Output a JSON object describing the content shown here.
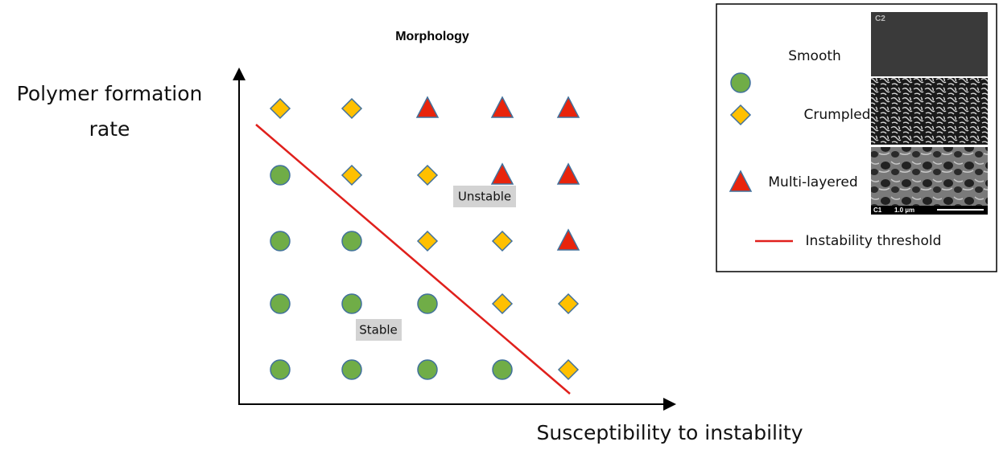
{
  "title": "Morphology",
  "y_axis_label": "Polymer formation rate",
  "x_axis_label": "Susceptibility to instability",
  "regions": {
    "unstable": "Unstable",
    "stable": "Stable"
  },
  "legend": {
    "items": [
      {
        "label": "Smooth",
        "image_caption": "C2"
      },
      {
        "label": "Crumpled"
      },
      {
        "label": "Multi-layered",
        "image_caption": "C1",
        "scale_bar": "1.0 µm"
      },
      {
        "label": "Instability threshold"
      }
    ]
  }
}
